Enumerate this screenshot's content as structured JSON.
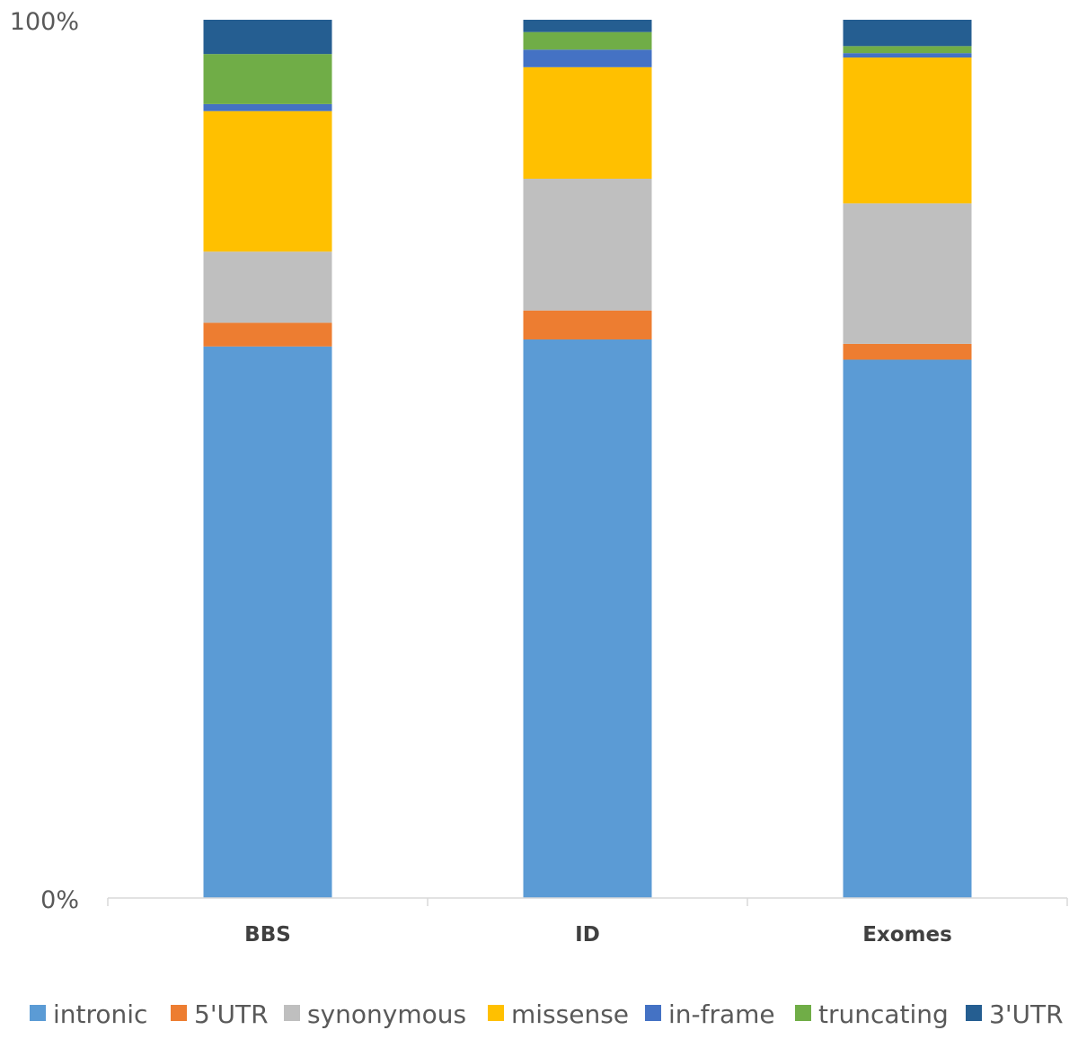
{
  "chart_data": {
    "type": "bar",
    "stacked": true,
    "normalized": true,
    "categories": [
      "BBS",
      "ID",
      "Exomes"
    ],
    "yticks": [
      "0%",
      "100%"
    ],
    "ylim": [
      0,
      100
    ],
    "legend_position": "bottom",
    "series": [
      {
        "name": "intronic",
        "color": "#5B9BD5",
        "values": [
          62.8,
          63.6,
          61.3
        ]
      },
      {
        "name": "5'UTR",
        "color": "#ED7D31",
        "values": [
          2.7,
          3.3,
          1.8
        ]
      },
      {
        "name": "synonymous",
        "color": "#BFBFBF",
        "values": [
          8.1,
          15.0,
          16.0
        ]
      },
      {
        "name": "missense",
        "color": "#FFC000",
        "values": [
          16.0,
          12.7,
          16.6
        ]
      },
      {
        "name": "in-frame",
        "color": "#4472C4",
        "values": [
          0.8,
          2.0,
          0.5
        ]
      },
      {
        "name": "truncating",
        "color": "#70AD47",
        "values": [
          5.7,
          2.0,
          0.8
        ]
      },
      {
        "name": "3'UTR",
        "color": "#255E91",
        "values": [
          3.9,
          1.4,
          3.0
        ]
      }
    ]
  }
}
